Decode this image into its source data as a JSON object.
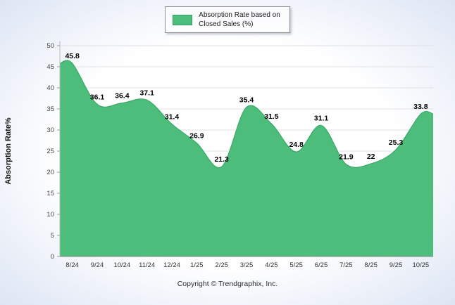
{
  "legend": {
    "line1": "Absorption Rate based on",
    "line2": "Closed Sales (%)",
    "swatch_color": "#4dbd7c"
  },
  "footer": {
    "copyright": "Copyright © Trendgraphix, Inc."
  },
  "chart_data": {
    "type": "area",
    "title": "",
    "xlabel": "",
    "ylabel": "Absorption Rate%",
    "categories": [
      "8/24",
      "9/24",
      "10/24",
      "11/24",
      "12/24",
      "1/25",
      "2/25",
      "3/25",
      "4/25",
      "5/25",
      "6/25",
      "7/25",
      "8/25",
      "9/25",
      "10/25"
    ],
    "values": [
      45.8,
      36.1,
      36.4,
      37.1,
      31.4,
      26.9,
      21.3,
      35.4,
      31.5,
      24.8,
      31.1,
      21.9,
      22,
      25.3,
      33.8
    ],
    "point_labels": [
      "45.8",
      "36.1",
      "36.4",
      "37.1",
      "31.4",
      "26.9",
      "21.3",
      "35.4",
      "31.5",
      "24.8",
      "31.1",
      "21.9",
      "22",
      "25.3",
      "33.8"
    ],
    "ylim": [
      0,
      50
    ],
    "yticks": [
      0,
      5,
      10,
      15,
      20,
      25,
      30,
      35,
      40,
      45,
      50
    ],
    "grid": true,
    "legend_position": "top",
    "series_name": "Absorption Rate based on Closed Sales (%)",
    "fill_color": "#4dbd7c",
    "line_color": "#3aa968"
  }
}
